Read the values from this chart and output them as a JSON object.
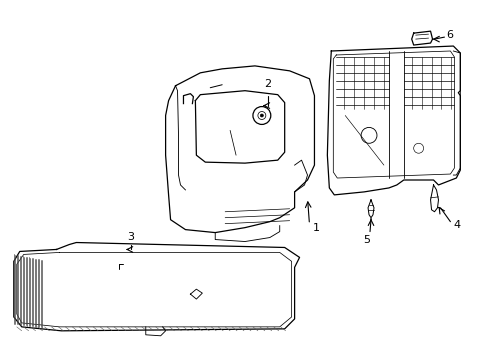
{
  "background_color": "#ffffff",
  "line_color": "#000000",
  "figsize": [
    4.89,
    3.6
  ],
  "dpi": 100,
  "label_fontsize": 8
}
